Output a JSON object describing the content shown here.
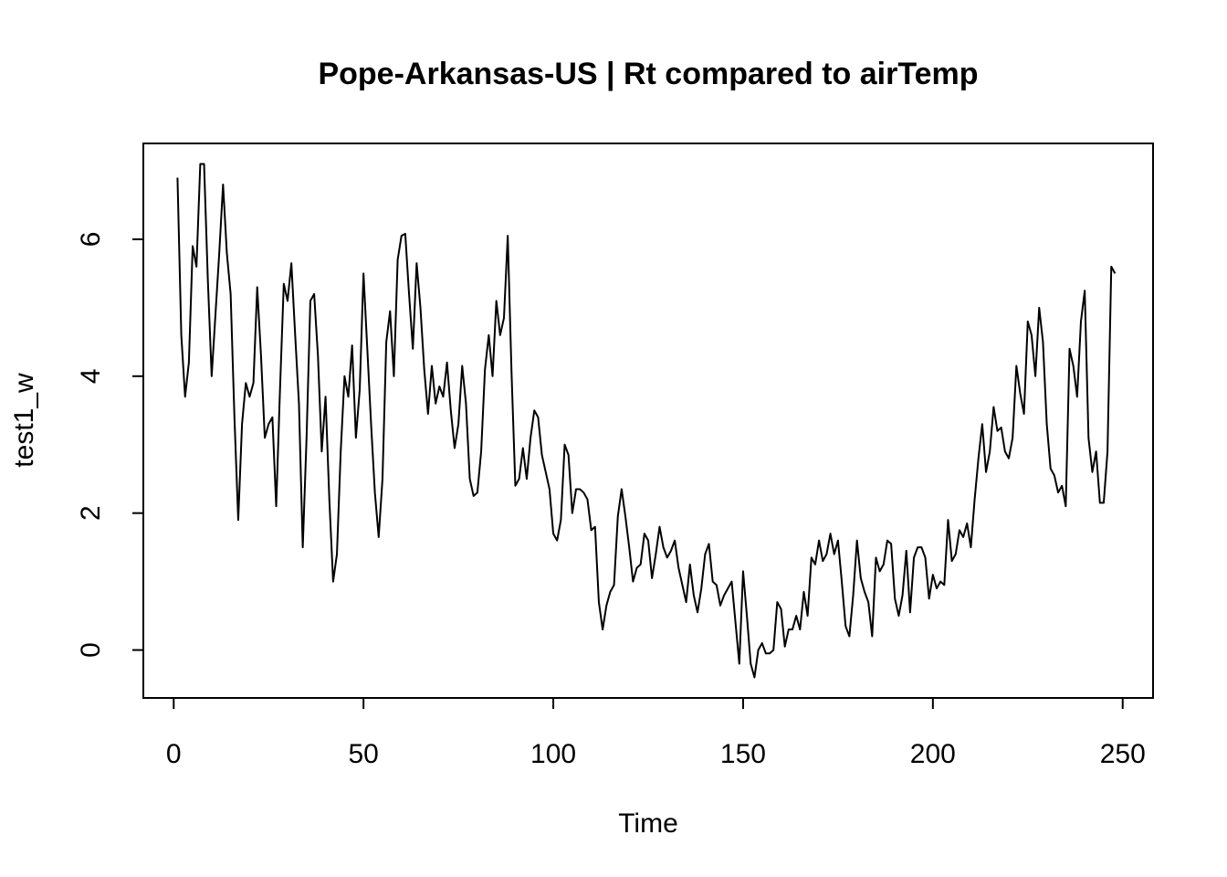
{
  "chart_data": {
    "type": "line",
    "title": "Pope-Arkansas-US | Rt compared to airTemp",
    "xlabel": "Time",
    "ylabel": "test1_w",
    "xlim": [
      -8,
      258
    ],
    "ylim": [
      -0.7,
      7.4
    ],
    "xticks": [
      0,
      50,
      100,
      150,
      200,
      250
    ],
    "yticks": [
      0,
      2,
      4,
      6
    ],
    "grid": false,
    "line_color": "#000000",
    "series": [
      {
        "x": [
          1,
          2,
          3,
          4,
          5,
          6,
          7,
          8,
          9,
          10,
          11,
          12,
          13,
          14,
          15,
          16,
          17,
          18,
          19,
          20,
          21,
          22,
          23,
          24,
          25,
          26,
          27,
          28,
          29,
          30,
          31,
          32,
          33,
          34,
          35,
          36,
          37,
          38,
          39,
          40,
          41,
          42,
          43,
          44,
          45,
          46,
          47,
          48,
          49,
          50,
          51,
          52,
          53,
          54,
          55,
          56,
          57,
          58,
          59,
          60,
          61,
          62,
          63,
          64,
          65,
          66,
          67,
          68,
          69,
          70,
          71,
          72,
          73,
          74,
          75,
          76,
          77,
          78,
          79,
          80,
          81,
          82,
          83,
          84,
          85,
          86,
          87,
          88,
          89,
          90,
          91,
          92,
          93,
          94,
          95,
          96,
          97,
          98,
          99,
          100,
          101,
          102,
          103,
          104,
          105,
          106,
          107,
          108,
          109,
          110,
          111,
          112,
          113,
          114,
          115,
          116,
          117,
          118,
          119,
          120,
          121,
          122,
          123,
          124,
          125,
          126,
          127,
          128,
          129,
          130,
          131,
          132,
          133,
          134,
          135,
          136,
          137,
          138,
          139,
          140,
          141,
          142,
          143,
          144,
          145,
          146,
          147,
          148,
          149,
          150,
          151,
          152,
          153,
          154,
          155,
          156,
          157,
          158,
          159,
          160,
          161,
          162,
          163,
          164,
          165,
          166,
          167,
          168,
          169,
          170,
          171,
          172,
          173,
          174,
          175,
          176,
          177,
          178,
          179,
          180,
          181,
          182,
          183,
          184,
          185,
          186,
          187,
          188,
          189,
          190,
          191,
          192,
          193,
          194,
          195,
          196,
          197,
          198,
          199,
          200,
          201,
          202,
          203,
          204,
          205,
          206,
          207,
          208,
          209,
          210,
          211,
          212,
          213,
          214,
          215,
          216,
          217,
          218,
          219,
          220,
          221,
          222,
          223,
          224,
          225,
          226,
          227,
          228,
          229,
          230,
          231,
          232,
          233,
          234,
          235,
          236,
          237,
          238,
          239,
          240,
          241,
          242,
          243,
          244,
          245,
          246,
          247,
          248
        ],
        "values": [
          6.9,
          4.6,
          3.7,
          4.2,
          5.9,
          5.6,
          7.1,
          7.1,
          5.4,
          4.0,
          4.9,
          5.8,
          6.8,
          5.8,
          5.2,
          3.4,
          1.9,
          3.3,
          3.9,
          3.7,
          3.9,
          5.3,
          4.3,
          3.1,
          3.3,
          3.4,
          2.1,
          3.8,
          5.35,
          5.1,
          5.65,
          4.6,
          3.6,
          1.5,
          3.1,
          5.1,
          5.2,
          4.3,
          2.9,
          3.7,
          2.2,
          1.0,
          1.4,
          2.9,
          4.0,
          3.7,
          4.45,
          3.1,
          3.8,
          5.5,
          4.4,
          3.3,
          2.3,
          1.65,
          2.5,
          4.5,
          4.95,
          4.0,
          5.7,
          6.05,
          6.08,
          5.2,
          4.4,
          5.65,
          5.0,
          4.1,
          3.45,
          4.15,
          3.6,
          3.85,
          3.7,
          4.2,
          3.5,
          2.95,
          3.3,
          4.15,
          3.6,
          2.5,
          2.25,
          2.3,
          2.9,
          4.1,
          4.6,
          4.0,
          5.1,
          4.6,
          4.85,
          6.05,
          4.05,
          2.4,
          2.5,
          2.95,
          2.5,
          3.1,
          3.5,
          3.4,
          2.85,
          2.6,
          2.35,
          1.7,
          1.6,
          1.9,
          3.0,
          2.85,
          2.0,
          2.35,
          2.35,
          2.3,
          2.2,
          1.75,
          1.8,
          0.7,
          0.3,
          0.65,
          0.85,
          0.95,
          1.95,
          2.35,
          1.95,
          1.5,
          1.0,
          1.2,
          1.25,
          1.7,
          1.6,
          1.05,
          1.4,
          1.8,
          1.5,
          1.35,
          1.45,
          1.6,
          1.2,
          0.95,
          0.7,
          1.25,
          0.8,
          0.55,
          0.9,
          1.4,
          1.55,
          1.0,
          0.95,
          0.65,
          0.8,
          0.9,
          1.0,
          0.4,
          -0.2,
          1.15,
          0.5,
          -0.2,
          -0.4,
          0.0,
          0.1,
          -0.05,
          -0.05,
          0.0,
          0.7,
          0.6,
          0.05,
          0.3,
          0.3,
          0.5,
          0.3,
          0.85,
          0.5,
          1.35,
          1.25,
          1.6,
          1.3,
          1.4,
          1.7,
          1.4,
          1.6,
          1.0,
          0.35,
          0.2,
          0.8,
          1.6,
          1.05,
          0.85,
          0.7,
          0.2,
          1.35,
          1.15,
          1.25,
          1.6,
          1.55,
          0.75,
          0.5,
          0.8,
          1.45,
          0.55,
          1.35,
          1.5,
          1.5,
          1.35,
          0.75,
          1.1,
          0.9,
          1.0,
          0.95,
          1.9,
          1.3,
          1.4,
          1.75,
          1.65,
          1.85,
          1.5,
          2.2,
          2.8,
          3.3,
          2.6,
          2.9,
          3.55,
          3.2,
          3.25,
          2.9,
          2.8,
          3.1,
          4.15,
          3.75,
          3.45,
          4.8,
          4.6,
          4.0,
          5.0,
          4.5,
          3.3,
          2.65,
          2.55,
          2.3,
          2.4,
          2.1,
          4.4,
          4.15,
          3.7,
          4.8,
          5.25,
          3.1,
          2.6,
          2.9,
          2.15,
          2.15,
          2.9,
          5.6,
          5.5
        ]
      }
    ]
  }
}
